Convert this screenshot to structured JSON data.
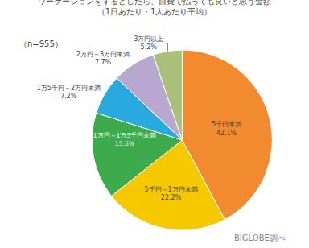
{
  "chart_data": {
    "type": "pie",
    "title": "ワーケーションをするとしたら、自費で払っても良いと思う金額",
    "subtitle": "（1日あたり・1人あたり平均）",
    "annotations": [
      "（n=955）",
      "BIGLOBE調べ"
    ],
    "categories": [
      "5千円未満",
      "5千円～1万円未満",
      "1万円～1万5千円未満",
      "1万5千円～2万円未満",
      "2万円～3万円未満",
      "3万円以上"
    ],
    "values": [
      42.1,
      22.2,
      15.5,
      7.2,
      7.7,
      5.2
    ],
    "value_labels": [
      "42.1%",
      "22.2%",
      "15.5%",
      "7.2%",
      "7.7%",
      "5.2%"
    ],
    "colors": [
      "#F28A30",
      "#F5C800",
      "#3DAA4B",
      "#29AADF",
      "#B8A8D0",
      "#AABF7A"
    ],
    "data_labels": true
  }
}
